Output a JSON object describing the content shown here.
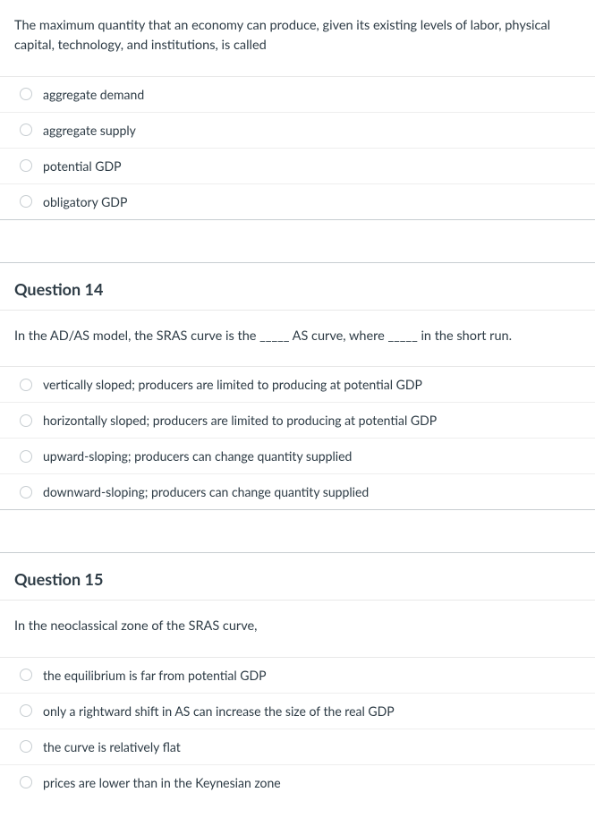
{
  "colors": {
    "text": "#2d3b45",
    "border_light": "#e8e8e8",
    "border_row": "#eeeeee",
    "divider": "#c7cdd1",
    "radio_border": "#c7cdd1",
    "background": "#ffffff"
  },
  "typography": {
    "body_fontsize": 14.5,
    "option_fontsize": 14,
    "header_fontsize": 18,
    "line_height": 1.55
  },
  "questions": [
    {
      "header": "",
      "prompt": "The maximum quantity that an economy can produce, given its existing levels of labor, physical capital, technology, and institutions, is called",
      "options": [
        "aggregate demand",
        "aggregate supply",
        "potential GDP",
        "obligatory GDP"
      ]
    },
    {
      "header": "Question 14",
      "prompt": "In the AD/AS model, the SRAS curve is the _____ AS curve, where _____ in the short run.",
      "options": [
        "vertically sloped; producers are limited to producing at potential GDP",
        "horizontally sloped; producers are limited to producing at potential GDP",
        "upward-sloping; producers can change quantity supplied",
        "downward-sloping; producers can change quantity supplied"
      ]
    },
    {
      "header": "Question 15",
      "prompt": "In the neoclassical zone of the SRAS curve,",
      "options": [
        "the equilibrium is far from potential GDP",
        "only a rightward shift in AS can increase the size of the real GDP",
        "the curve is relatively flat",
        "prices are lower than in the Keynesian zone"
      ]
    }
  ]
}
